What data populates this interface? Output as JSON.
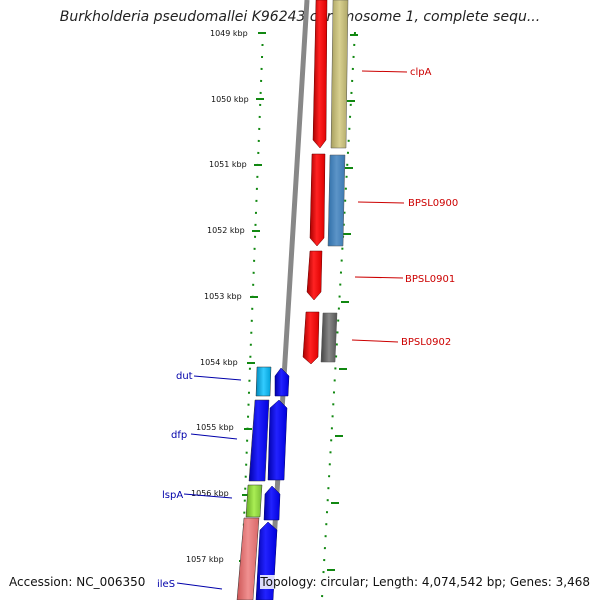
{
  "title": "Burkholderia pseudomallei K96243 chromosome 1, complete sequ...",
  "footer": {
    "accession": "Accession: NC_006350",
    "topology": "Topology: circular; Length: 4,074,542 bp; Genes: 3,468"
  },
  "colors": {
    "forward_strand": "#ee1111",
    "reverse_strand": "#1111ee",
    "backbone": "#888888",
    "tick": "#118811",
    "forward_label": "#cc0000",
    "reverse_label": "#0000aa"
  },
  "ticks": [
    "1049 kbp",
    "1050 kbp",
    "1051 kbp",
    "1052 kbp",
    "1053 kbp",
    "1054 kbp",
    "1055 kbp",
    "1056 kbp",
    "1057 kbp"
  ],
  "gene_labels": {
    "clpA": "clpA",
    "bpsl0900": "BPSL0900",
    "bpsl0901": "BPSL0901",
    "bpsl0902": "BPSL0902",
    "dut": "dut",
    "dfp": "dfp",
    "lspA": "lspA",
    "ileS": "ileS"
  }
}
